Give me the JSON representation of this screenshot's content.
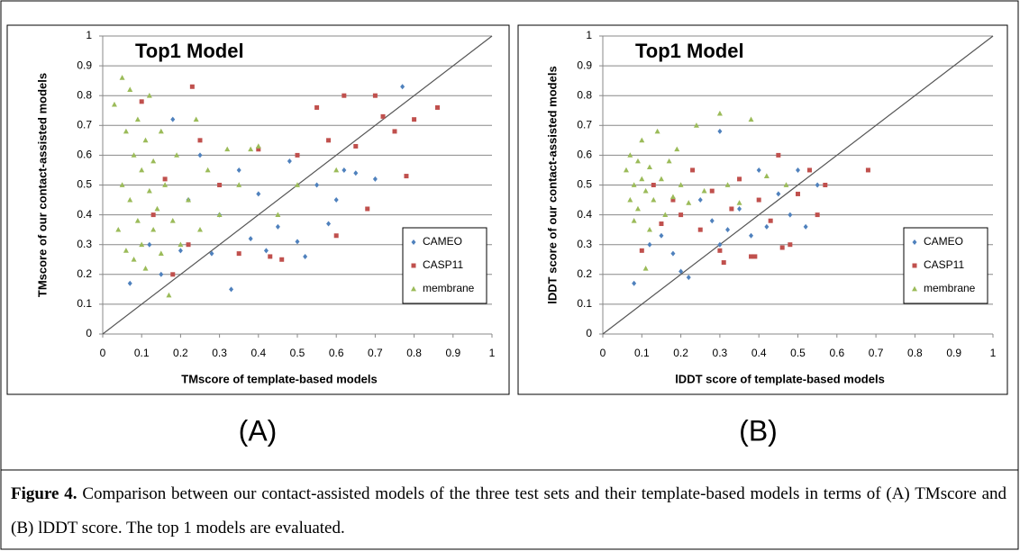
{
  "chart_data": [
    {
      "type": "scatter",
      "title": "Top1 Model",
      "panel_label": "(A)",
      "xlabel": "TMscore of template-based models",
      "ylabel": "TMscore of our contact-assisted models",
      "xlim": [
        0,
        1
      ],
      "ylim": [
        0,
        1
      ],
      "xticks": [
        0,
        0.1,
        0.2,
        0.3,
        0.4,
        0.5,
        0.6,
        0.7,
        0.8,
        0.9,
        1
      ],
      "yticks": [
        0,
        0.1,
        0.2,
        0.3,
        0.4,
        0.5,
        0.6,
        0.7,
        0.8,
        0.9,
        1
      ],
      "grid": "y",
      "diagonal": true,
      "legend": "lower right",
      "series": [
        {
          "name": "CAMEO",
          "color": "#4f81bd",
          "marker": "diamond",
          "x": [
            0.07,
            0.12,
            0.15,
            0.18,
            0.2,
            0.22,
            0.25,
            0.28,
            0.3,
            0.33,
            0.35,
            0.38,
            0.4,
            0.42,
            0.45,
            0.48,
            0.5,
            0.52,
            0.55,
            0.58,
            0.6,
            0.62,
            0.65,
            0.7,
            0.77
          ],
          "values": [
            0.17,
            0.3,
            0.2,
            0.72,
            0.28,
            0.45,
            0.6,
            0.27,
            0.4,
            0.15,
            0.55,
            0.32,
            0.47,
            0.28,
            0.36,
            0.58,
            0.31,
            0.26,
            0.5,
            0.37,
            0.45,
            0.55,
            0.54,
            0.52,
            0.83
          ]
        },
        {
          "name": "CASP11",
          "color": "#c0504d",
          "marker": "square",
          "x": [
            0.1,
            0.13,
            0.16,
            0.18,
            0.22,
            0.25,
            0.3,
            0.35,
            0.4,
            0.43,
            0.46,
            0.5,
            0.55,
            0.58,
            0.6,
            0.62,
            0.65,
            0.68,
            0.7,
            0.72,
            0.75,
            0.78,
            0.8,
            0.86,
            0.23
          ],
          "values": [
            0.78,
            0.4,
            0.52,
            0.2,
            0.3,
            0.65,
            0.5,
            0.27,
            0.62,
            0.26,
            0.25,
            0.6,
            0.76,
            0.65,
            0.33,
            0.8,
            0.63,
            0.42,
            0.8,
            0.73,
            0.68,
            0.53,
            0.72,
            0.76,
            0.83
          ]
        },
        {
          "name": "membrane",
          "color": "#9bbb59",
          "marker": "triangle",
          "x": [
            0.03,
            0.04,
            0.05,
            0.05,
            0.06,
            0.06,
            0.07,
            0.07,
            0.08,
            0.08,
            0.09,
            0.09,
            0.1,
            0.1,
            0.11,
            0.11,
            0.12,
            0.12,
            0.13,
            0.13,
            0.14,
            0.15,
            0.15,
            0.16,
            0.17,
            0.18,
            0.19,
            0.2,
            0.22,
            0.24,
            0.25,
            0.27,
            0.3,
            0.32,
            0.35,
            0.38,
            0.4,
            0.45,
            0.5,
            0.6
          ],
          "values": [
            0.77,
            0.35,
            0.86,
            0.5,
            0.28,
            0.68,
            0.82,
            0.45,
            0.25,
            0.6,
            0.38,
            0.72,
            0.55,
            0.3,
            0.65,
            0.22,
            0.48,
            0.8,
            0.35,
            0.58,
            0.42,
            0.27,
            0.68,
            0.5,
            0.13,
            0.38,
            0.6,
            0.3,
            0.45,
            0.72,
            0.35,
            0.55,
            0.4,
            0.62,
            0.5,
            0.62,
            0.63,
            0.4,
            0.5,
            0.55
          ]
        }
      ]
    },
    {
      "type": "scatter",
      "title": "Top1 Model",
      "panel_label": "(B)",
      "xlabel": "lDDT score of template-based models",
      "ylabel": "lDDT score of our contact-assisted models",
      "xlim": [
        0,
        1
      ],
      "ylim": [
        0,
        1
      ],
      "xticks": [
        0,
        0.1,
        0.2,
        0.3,
        0.4,
        0.5,
        0.6,
        0.7,
        0.8,
        0.9,
        1
      ],
      "yticks": [
        0,
        0.1,
        0.2,
        0.3,
        0.4,
        0.5,
        0.6,
        0.7,
        0.8,
        0.9,
        1
      ],
      "grid": "y",
      "diagonal": true,
      "legend": "lower right",
      "series": [
        {
          "name": "CAMEO",
          "color": "#4f81bd",
          "marker": "diamond",
          "x": [
            0.08,
            0.12,
            0.15,
            0.18,
            0.2,
            0.22,
            0.25,
            0.28,
            0.3,
            0.32,
            0.35,
            0.38,
            0.4,
            0.42,
            0.45,
            0.48,
            0.5,
            0.52,
            0.55,
            0.3
          ],
          "values": [
            0.17,
            0.3,
            0.33,
            0.27,
            0.21,
            0.19,
            0.45,
            0.38,
            0.68,
            0.35,
            0.42,
            0.33,
            0.55,
            0.36,
            0.47,
            0.4,
            0.55,
            0.36,
            0.5,
            0.3
          ]
        },
        {
          "name": "CASP11",
          "color": "#c0504d",
          "marker": "square",
          "x": [
            0.1,
            0.13,
            0.15,
            0.18,
            0.2,
            0.23,
            0.25,
            0.28,
            0.3,
            0.33,
            0.35,
            0.38,
            0.4,
            0.43,
            0.45,
            0.48,
            0.5,
            0.53,
            0.55,
            0.57,
            0.68,
            0.31,
            0.39,
            0.46
          ],
          "values": [
            0.28,
            0.5,
            0.37,
            0.45,
            0.4,
            0.55,
            0.35,
            0.48,
            0.28,
            0.42,
            0.52,
            0.26,
            0.45,
            0.38,
            0.6,
            0.3,
            0.47,
            0.55,
            0.4,
            0.5,
            0.55,
            0.24,
            0.26,
            0.29
          ]
        },
        {
          "name": "membrane",
          "color": "#9bbb59",
          "marker": "triangle",
          "x": [
            0.06,
            0.07,
            0.07,
            0.08,
            0.08,
            0.09,
            0.09,
            0.1,
            0.1,
            0.11,
            0.11,
            0.12,
            0.12,
            0.13,
            0.14,
            0.15,
            0.16,
            0.17,
            0.18,
            0.19,
            0.2,
            0.22,
            0.24,
            0.26,
            0.3,
            0.32,
            0.35,
            0.38,
            0.42,
            0.47
          ],
          "values": [
            0.55,
            0.45,
            0.6,
            0.5,
            0.38,
            0.58,
            0.42,
            0.52,
            0.65,
            0.22,
            0.48,
            0.56,
            0.35,
            0.45,
            0.68,
            0.52,
            0.4,
            0.58,
            0.46,
            0.62,
            0.5,
            0.44,
            0.7,
            0.48,
            0.74,
            0.5,
            0.44,
            0.72,
            0.53,
            0.5
          ]
        }
      ]
    }
  ],
  "caption": {
    "label": "Figure 4.",
    "text": "Comparison between our contact-assisted models of the three test sets and their template-based models in terms of (A) TMscore and (B) lDDT score. The top 1 models are evaluated."
  }
}
